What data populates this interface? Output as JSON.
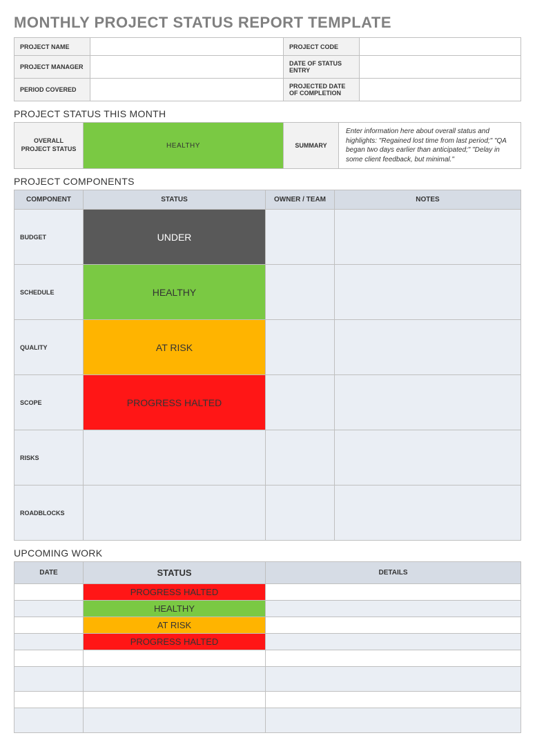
{
  "colors": {
    "healthy": {
      "bg": "#7ac943",
      "fg": "#333333"
    },
    "under": {
      "bg": "#595959",
      "fg": "#ffffff"
    },
    "atrisk": {
      "bg": "#ffb400",
      "fg": "#333333"
    },
    "halted": {
      "bg": "#ff1616",
      "fg": "#333333"
    },
    "blank": {
      "bg": "#eaeef4",
      "fg": "#333333"
    }
  },
  "title": "MONTHLY PROJECT STATUS REPORT TEMPLATE",
  "info": {
    "labels": {
      "project_name": "PROJECT NAME",
      "project_code": "PROJECT CODE",
      "project_manager": "PROJECT MANAGER",
      "date_of_status": "DATE OF STATUS ENTRY",
      "period_covered": "PERIOD COVERED",
      "projected_completion": "PROJECTED DATE OF COMPLETION"
    },
    "values": {
      "project_name": "",
      "project_code": "",
      "project_manager": "",
      "date_of_status": "",
      "period_covered": "",
      "projected_completion": ""
    }
  },
  "status_month": {
    "heading": "PROJECT STATUS THIS MONTH",
    "overall_label": "OVERALL PROJECT STATUS",
    "overall_status": {
      "text": "HEALTHY",
      "color": "healthy"
    },
    "summary_label": "SUMMARY",
    "summary_text": "Enter information here about overall status and highlights: \"Regained lost time from last period;\" \"QA began two days earlier than anticipated;\" \"Delay in some client feedback, but minimal.\""
  },
  "components": {
    "heading": "PROJECT COMPONENTS",
    "headers": {
      "component": "COMPONENT",
      "status": "STATUS",
      "owner": "OWNER / TEAM",
      "notes": "NOTES"
    },
    "rows": [
      {
        "label": "BUDGET",
        "status": {
          "text": "UNDER",
          "color": "under"
        },
        "owner": "",
        "notes": ""
      },
      {
        "label": "SCHEDULE",
        "status": {
          "text": "HEALTHY",
          "color": "healthy"
        },
        "owner": "",
        "notes": ""
      },
      {
        "label": "QUALITY",
        "status": {
          "text": "AT RISK",
          "color": "atrisk"
        },
        "owner": "",
        "notes": ""
      },
      {
        "label": "SCOPE",
        "status": {
          "text": "PROGRESS HALTED",
          "color": "halted"
        },
        "owner": "",
        "notes": ""
      },
      {
        "label": "RISKS",
        "status": {
          "text": "",
          "color": "blank"
        },
        "owner": "",
        "notes": ""
      },
      {
        "label": "ROADBLOCKS",
        "status": {
          "text": "",
          "color": "blank"
        },
        "owner": "",
        "notes": ""
      }
    ]
  },
  "upcoming": {
    "heading": "UPCOMING WORK",
    "headers": {
      "date": "DATE",
      "status": "STATUS",
      "details": "DETAILS"
    },
    "rows": [
      {
        "date": "",
        "status": {
          "text": "PROGRESS HALTED",
          "color": "halted"
        },
        "details": "",
        "tall": false
      },
      {
        "date": "",
        "status": {
          "text": "HEALTHY",
          "color": "healthy"
        },
        "details": "",
        "tall": false
      },
      {
        "date": "",
        "status": {
          "text": "AT RISK",
          "color": "atrisk"
        },
        "details": "",
        "tall": false
      },
      {
        "date": "",
        "status": {
          "text": "PROGRESS HALTED",
          "color": "halted"
        },
        "details": "",
        "tall": false
      },
      {
        "date": "",
        "status": {
          "text": "",
          "color": null
        },
        "details": "",
        "tall": false
      },
      {
        "date": "",
        "status": {
          "text": "",
          "color": null
        },
        "details": "",
        "tall": true
      },
      {
        "date": "",
        "status": {
          "text": "",
          "color": null
        },
        "details": "",
        "tall": false
      },
      {
        "date": "",
        "status": {
          "text": "",
          "color": null
        },
        "details": "",
        "tall": true
      }
    ]
  }
}
